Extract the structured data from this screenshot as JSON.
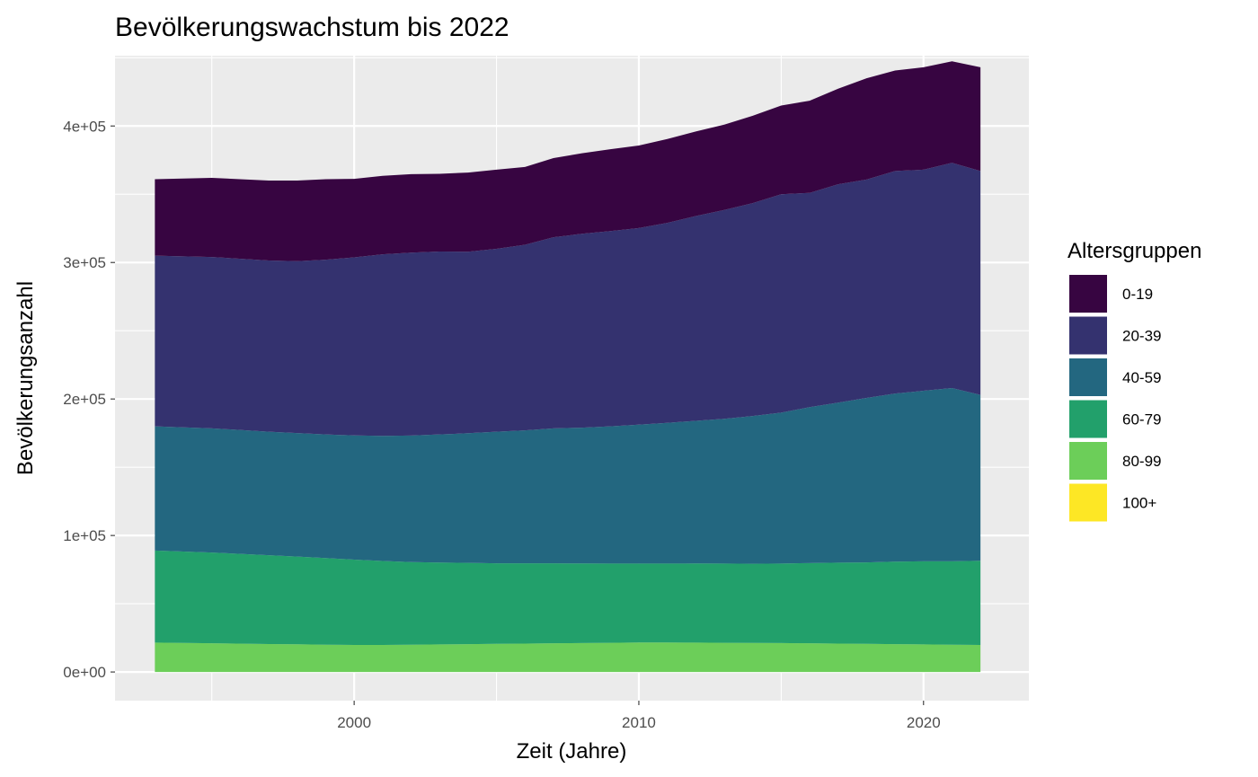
{
  "chart_data": {
    "type": "area",
    "stacked": true,
    "title": "Bevölkerungswachstum bis 2022",
    "xlabel": "Zeit (Jahre)",
    "ylabel": "Bevölkerungsanzahl",
    "xlim": [
      1991.6,
      2023.7
    ],
    "ylim": [
      -21000,
      451500
    ],
    "x_ticks": [
      2000,
      2010,
      2020
    ],
    "y_ticks": [
      0,
      100000,
      200000,
      300000,
      400000
    ],
    "y_tick_labels": [
      "0e+00",
      "1e+05",
      "2e+05",
      "3e+05",
      "4e+05"
    ],
    "grid": true,
    "legend_position": "right",
    "legend_title": "Altersgruppen",
    "x": [
      1993,
      1995,
      1997,
      1998,
      1999,
      2000,
      2001,
      2002,
      2003,
      2004,
      2005,
      2006,
      2007,
      2008,
      2009,
      2010,
      2011,
      2012,
      2013,
      2014,
      2015,
      2016,
      2017,
      2018,
      2019,
      2020,
      2021,
      2022
    ],
    "series": [
      {
        "name": "100+",
        "color": "#FDE725",
        "values": [
          0,
          0,
          0,
          0,
          0,
          0,
          0,
          0,
          0,
          0,
          0,
          0,
          0,
          0,
          0,
          0,
          0,
          0,
          0,
          0,
          0,
          0,
          0,
          0,
          0,
          0,
          0,
          0
        ]
      },
      {
        "name": "80-99",
        "color": "#6CCE59",
        "values": [
          21500,
          21000,
          20500,
          20300,
          20000,
          19800,
          19800,
          20000,
          20200,
          20400,
          20600,
          20800,
          21000,
          21200,
          21400,
          21600,
          21600,
          21500,
          21400,
          21300,
          21200,
          21000,
          20800,
          20600,
          20400,
          20200,
          20000,
          19800
        ]
      },
      {
        "name": "60-79",
        "color": "#22A06B",
        "values": [
          67500,
          66500,
          65000,
          64200,
          63500,
          62500,
          61500,
          60500,
          60000,
          59500,
          59000,
          58800,
          58600,
          58300,
          58000,
          57800,
          57800,
          58000,
          58000,
          58000,
          58200,
          58800,
          59300,
          59700,
          60400,
          60900,
          61100,
          61700
        ]
      },
      {
        "name": "40-59",
        "color": "#236780",
        "values": [
          91000,
          91000,
          90500,
          90500,
          90500,
          91000,
          91700,
          92700,
          93800,
          95000,
          96400,
          97400,
          98900,
          99500,
          100600,
          101800,
          103100,
          104500,
          106100,
          108200,
          110600,
          114200,
          117200,
          120500,
          123200,
          124900,
          126900,
          121500
        ]
      },
      {
        "name": "20-39",
        "color": "#34326F",
        "values": [
          125000,
          125500,
          125500,
          126000,
          128000,
          130500,
          133000,
          134000,
          134000,
          133000,
          134000,
          136000,
          140000,
          142000,
          143000,
          144000,
          146500,
          150000,
          153000,
          156000,
          160000,
          157000,
          160000,
          160000,
          163000,
          162000,
          165000,
          164000
        ]
      },
      {
        "name": "0-19",
        "color": "#370541",
        "values": [
          56000,
          58000,
          58500,
          59000,
          59000,
          57500,
          57500,
          57500,
          57000,
          58000,
          58000,
          57000,
          58000,
          59000,
          60000,
          60500,
          61500,
          62000,
          62500,
          64000,
          65000,
          67500,
          70000,
          74200,
          73600,
          75000,
          74400,
          76000
        ]
      }
    ]
  }
}
